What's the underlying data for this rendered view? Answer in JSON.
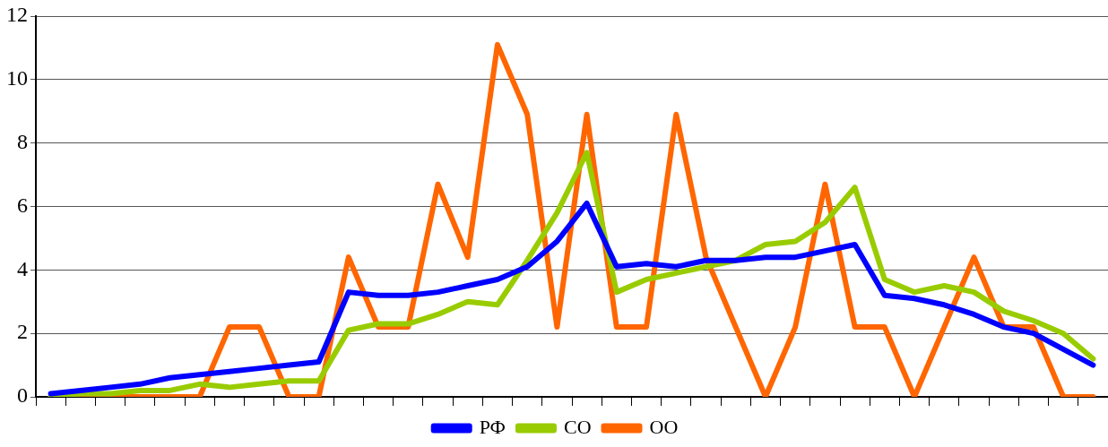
{
  "chart_data": {
    "type": "line",
    "categories": [
      null,
      null,
      null,
      null,
      null,
      null,
      null,
      null,
      null,
      null,
      null,
      null,
      null,
      null,
      null,
      null,
      null,
      null,
      null,
      null,
      null,
      null,
      null,
      null,
      null,
      null,
      null,
      null,
      null,
      null,
      null,
      null,
      null,
      null,
      null,
      null
    ],
    "series": [
      {
        "name": "РФ",
        "color": "#0000ff",
        "values": [
          0.1,
          0.2,
          0.3,
          0.4,
          0.6,
          0.7,
          0.8,
          0.9,
          1.0,
          1.1,
          3.3,
          3.2,
          3.2,
          3.3,
          3.5,
          3.7,
          4.1,
          4.9,
          6.1,
          4.1,
          4.2,
          4.1,
          4.3,
          4.3,
          4.4,
          4.4,
          4.6,
          4.8,
          3.2,
          3.1,
          2.9,
          2.6,
          2.2,
          2.0,
          1.5,
          1.0
        ]
      },
      {
        "name": "СО",
        "color": "#99cc00",
        "values": [
          0,
          0.1,
          0.1,
          0.2,
          0.2,
          0.4,
          0.3,
          0.4,
          0.5,
          0.5,
          2.1,
          2.3,
          2.3,
          2.6,
          3.0,
          2.9,
          4.3,
          5.8,
          7.7,
          3.3,
          3.7,
          3.9,
          4.1,
          4.3,
          4.8,
          4.9,
          5.5,
          6.6,
          3.7,
          3.3,
          3.5,
          3.3,
          2.7,
          2.4,
          2.0,
          1.2
        ]
      },
      {
        "name": "ОО",
        "color": "#ff6600",
        "values": [
          0,
          0,
          0,
          0,
          0,
          0,
          2.2,
          2.2,
          0,
          0,
          4.4,
          2.2,
          2.2,
          6.7,
          4.4,
          11.1,
          8.9,
          2.2,
          8.9,
          2.2,
          2.2,
          8.9,
          4.4,
          2.2,
          0,
          2.2,
          6.7,
          2.2,
          2.2,
          0,
          2.2,
          4.4,
          2.2,
          2.2,
          0,
          0
        ]
      }
    ],
    "ylim": [
      0,
      12
    ],
    "yticks": [
      0,
      2,
      4,
      6,
      8,
      10,
      12
    ],
    "grid": "y",
    "legend": "bottom",
    "marker": "none",
    "tick_labels": "y"
  }
}
